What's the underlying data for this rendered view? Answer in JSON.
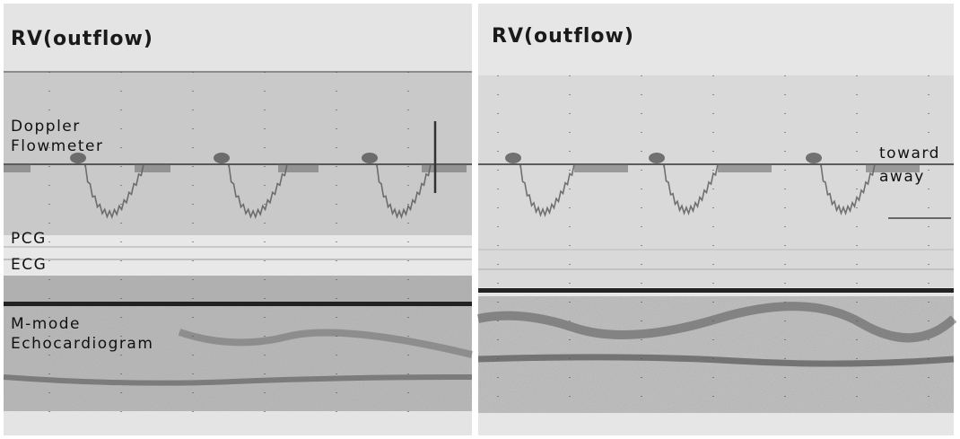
{
  "left_panel": {
    "title": "RV(outflow)",
    "labels": [
      "Doppler",
      "Flowmeter",
      "PCG",
      "ECG",
      "M-mode",
      "Echocardiogram"
    ]
  },
  "right_panel": {
    "title": "RV(outflow)",
    "labels": [
      "toward",
      "away"
    ]
  }
}
